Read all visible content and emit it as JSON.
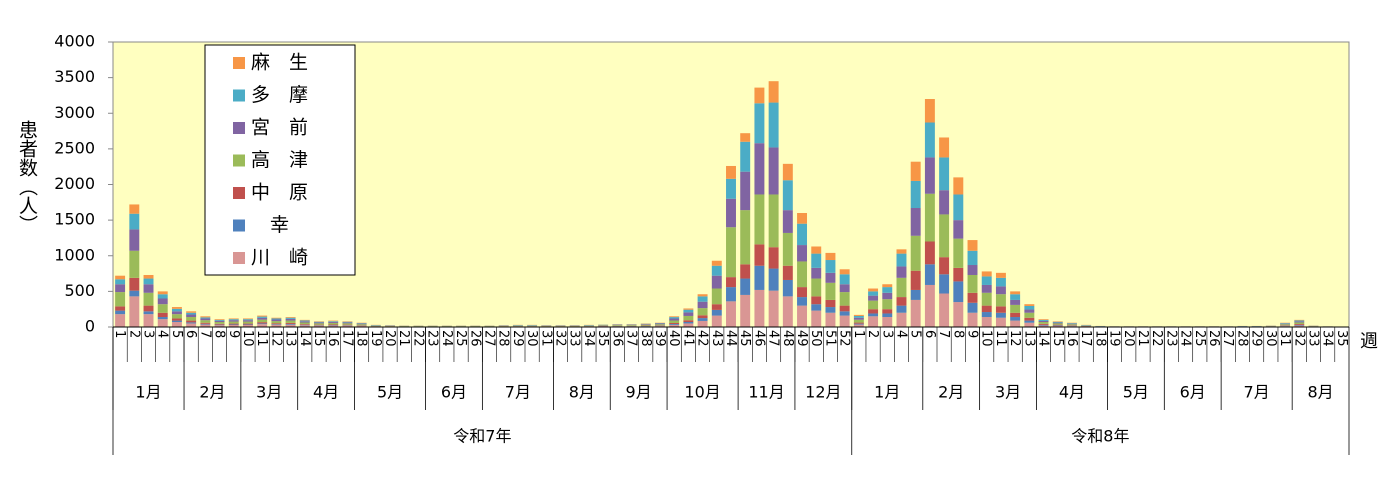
{
  "chart_data": {
    "type": "stacked_bar",
    "y_label": "患者数（人）",
    "x_label": "週",
    "ylim": [
      0,
      4000
    ],
    "yticks": [
      0,
      500,
      1000,
      1500,
      2000,
      2500,
      3000,
      3500,
      4000
    ],
    "categories": [
      1,
      2,
      3,
      4,
      5,
      6,
      7,
      8,
      9,
      10,
      11,
      12,
      13,
      14,
      15,
      16,
      17,
      18,
      19,
      20,
      21,
      22,
      23,
      24,
      25,
      26,
      27,
      28,
      29,
      30,
      31,
      32,
      33,
      34,
      35,
      36,
      37,
      38,
      39,
      40,
      41,
      42,
      43,
      44,
      45,
      46,
      47,
      48,
      49,
      50,
      51,
      52,
      1,
      2,
      3,
      4,
      5,
      6,
      7,
      8,
      9,
      10,
      11,
      12,
      13,
      14,
      15,
      16,
      17,
      18,
      19,
      20,
      21,
      22,
      23,
      24,
      25,
      26,
      27,
      28,
      29,
      30,
      31,
      32,
      33,
      34,
      35
    ],
    "months": [
      {
        "label": "1月",
        "weeks": 5
      },
      {
        "label": "2月",
        "weeks": 4
      },
      {
        "label": "3月",
        "weeks": 4
      },
      {
        "label": "4月",
        "weeks": 4
      },
      {
        "label": "5月",
        "weeks": 5
      },
      {
        "label": "6月",
        "weeks": 4
      },
      {
        "label": "7月",
        "weeks": 5
      },
      {
        "label": "8月",
        "weeks": 4
      },
      {
        "label": "9月",
        "weeks": 4
      },
      {
        "label": "10月",
        "weeks": 5
      },
      {
        "label": "11月",
        "weeks": 4
      },
      {
        "label": "12月",
        "weeks": 4
      },
      {
        "label": "1月",
        "weeks": 5
      },
      {
        "label": "2月",
        "weeks": 4
      },
      {
        "label": "3月",
        "weeks": 4
      },
      {
        "label": "4月",
        "weeks": 5
      },
      {
        "label": "5月",
        "weeks": 4
      },
      {
        "label": "6月",
        "weeks": 4
      },
      {
        "label": "7月",
        "weeks": 5
      },
      {
        "label": "8月",
        "weeks": 4
      }
    ],
    "years": [
      {
        "label": "令和7年",
        "weeks": 52
      },
      {
        "label": "令和8年",
        "weeks": 35
      }
    ],
    "background": "#ffffc0",
    "series": [
      {
        "name": "川　崎",
        "color": "#d99694",
        "values": [
          180,
          430,
          180,
          110,
          70,
          50,
          35,
          25,
          28,
          28,
          40,
          30,
          33,
          24,
          19,
          21,
          19,
          14,
          7,
          6,
          5,
          5,
          5,
          5,
          5,
          5,
          5,
          6,
          7,
          7,
          6,
          6,
          6,
          7,
          8,
          9,
          9,
          11,
          13,
          30,
          50,
          85,
          160,
          360,
          450,
          520,
          510,
          430,
          300,
          230,
          200,
          160,
          35,
          150,
          140,
          200,
          380,
          590,
          470,
          350,
          200,
          140,
          130,
          90,
          60,
          20,
          15,
          12,
          6,
          3,
          2,
          2,
          2,
          2,
          2,
          2,
          2,
          2,
          2,
          3,
          3,
          4,
          12,
          20,
          4,
          2,
          1
        ]
      },
      {
        "name": "　幸",
        "color": "#4f81bd",
        "values": [
          50,
          80,
          40,
          30,
          20,
          15,
          10,
          8,
          8,
          8,
          10,
          9,
          10,
          7,
          6,
          6,
          6,
          4,
          2,
          2,
          1,
          1,
          1,
          1,
          1,
          1,
          1,
          2,
          2,
          2,
          2,
          2,
          2,
          2,
          3,
          3,
          3,
          4,
          5,
          12,
          20,
          40,
          80,
          200,
          230,
          340,
          310,
          230,
          120,
          90,
          80,
          60,
          12,
          40,
          50,
          100,
          140,
          290,
          270,
          290,
          140,
          70,
          70,
          50,
          30,
          10,
          8,
          6,
          3,
          1,
          1,
          1,
          1,
          1,
          1,
          1,
          1,
          1,
          1,
          1,
          1,
          2,
          6,
          10,
          2,
          1,
          1
        ]
      },
      {
        "name": "中　原",
        "color": "#c0504d",
        "values": [
          60,
          180,
          80,
          60,
          30,
          25,
          15,
          12,
          12,
          12,
          18,
          14,
          15,
          10,
          8,
          9,
          8,
          6,
          3,
          3,
          2,
          2,
          2,
          2,
          2,
          2,
          2,
          3,
          3,
          3,
          3,
          3,
          3,
          3,
          4,
          4,
          4,
          5,
          6,
          14,
          25,
          40,
          80,
          140,
          200,
          300,
          300,
          200,
          140,
          110,
          100,
          80,
          15,
          60,
          60,
          120,
          270,
          320,
          240,
          190,
          140,
          90,
          90,
          60,
          40,
          15,
          10,
          7,
          4,
          2,
          1,
          1,
          1,
          1,
          1,
          1,
          1,
          1,
          1,
          2,
          2,
          2,
          7,
          12,
          2,
          1,
          1
        ]
      },
      {
        "name": "高　津",
        "color": "#9bbb59",
        "values": [
          200,
          380,
          180,
          120,
          60,
          50,
          35,
          25,
          28,
          28,
          35,
          30,
          32,
          22,
          18,
          21,
          18,
          14,
          7,
          5,
          5,
          5,
          5,
          5,
          5,
          5,
          5,
          5,
          7,
          7,
          5,
          5,
          5,
          7,
          8,
          10,
          10,
          12,
          14,
          35,
          60,
          100,
          220,
          700,
          760,
          700,
          740,
          460,
          360,
          250,
          240,
          190,
          40,
          120,
          140,
          270,
          490,
          670,
          600,
          410,
          250,
          180,
          170,
          110,
          70,
          25,
          17,
          13,
          6,
          3,
          2,
          2,
          2,
          2,
          2,
          2,
          2,
          2,
          2,
          3,
          3,
          4,
          13,
          22,
          4,
          2,
          1
        ]
      },
      {
        "name": "宮　前",
        "color": "#8064a2",
        "values": [
          110,
          300,
          120,
          80,
          40,
          35,
          25,
          18,
          20,
          20,
          25,
          22,
          24,
          17,
          14,
          15,
          14,
          10,
          5,
          4,
          3,
          3,
          3,
          3,
          3,
          3,
          3,
          4,
          5,
          5,
          4,
          4,
          4,
          5,
          6,
          7,
          7,
          9,
          11,
          28,
          50,
          90,
          180,
          400,
          540,
          720,
          660,
          320,
          230,
          150,
          140,
          110,
          28,
          70,
          90,
          160,
          390,
          510,
          340,
          260,
          140,
          110,
          110,
          70,
          45,
          15,
          12,
          9,
          5,
          3,
          2,
          2,
          2,
          2,
          2,
          2,
          2,
          2,
          2,
          3,
          3,
          4,
          9,
          15,
          4,
          2,
          0
        ]
      },
      {
        "name": "多　摩",
        "color": "#4bacc6",
        "values": [
          70,
          220,
          80,
          60,
          35,
          25,
          15,
          12,
          14,
          14,
          18,
          15,
          16,
          12,
          9,
          10,
          9,
          7,
          4,
          3,
          2,
          2,
          2,
          2,
          2,
          2,
          2,
          3,
          4,
          4,
          3,
          3,
          3,
          4,
          4,
          4,
          4,
          5,
          6,
          20,
          38,
          75,
          140,
          280,
          420,
          560,
          630,
          420,
          300,
          200,
          180,
          140,
          25,
          60,
          80,
          180,
          380,
          490,
          460,
          360,
          200,
          120,
          120,
          80,
          50,
          15,
          11,
          8,
          4,
          2,
          1,
          1,
          1,
          1,
          1,
          1,
          1,
          1,
          1,
          2,
          2,
          2,
          8,
          13,
          2,
          1,
          1
        ]
      },
      {
        "name": "麻　生",
        "color": "#f79646",
        "values": [
          50,
          130,
          50,
          40,
          25,
          20,
          15,
          10,
          10,
          10,
          14,
          10,
          10,
          8,
          6,
          8,
          6,
          5,
          2,
          2,
          2,
          2,
          2,
          2,
          2,
          2,
          2,
          2,
          2,
          2,
          2,
          2,
          2,
          2,
          2,
          3,
          3,
          4,
          5,
          11,
          17,
          30,
          70,
          180,
          120,
          220,
          300,
          230,
          150,
          100,
          100,
          70,
          15,
          40,
          40,
          60,
          270,
          330,
          280,
          240,
          150,
          70,
          70,
          40,
          25,
          10,
          7,
          5,
          2,
          1,
          1,
          1,
          1,
          1,
          1,
          1,
          1,
          1,
          1,
          1,
          1,
          2,
          5,
          8,
          2,
          1,
          0
        ]
      }
    ]
  }
}
